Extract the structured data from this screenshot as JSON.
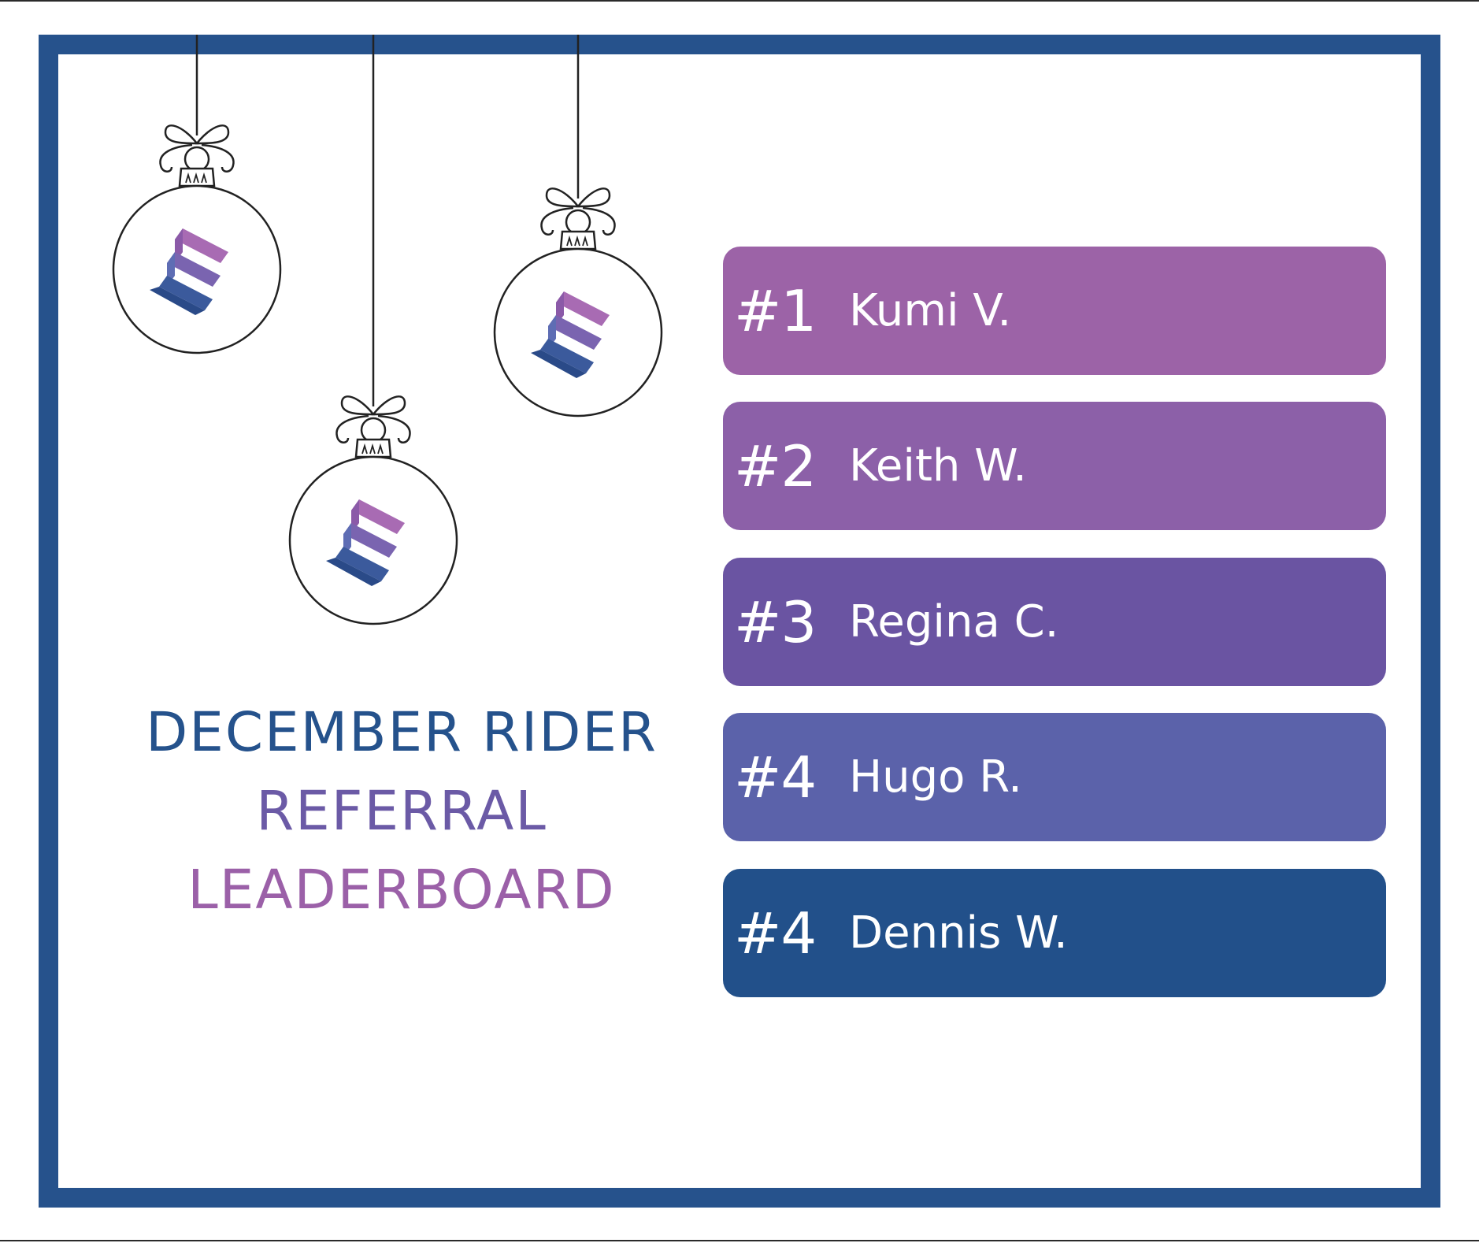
{
  "title": {
    "line1": "DECEMBER RIDER",
    "line2": "REFERRAL",
    "line3": "LEADERBOARD"
  },
  "leaderboard": [
    {
      "rank": "#1",
      "name": "Kumi V.",
      "color": "#9c63a7"
    },
    {
      "rank": "#2",
      "name": "Keith W.",
      "color": "#8c60a8"
    },
    {
      "rank": "#3",
      "name": "Regina C.",
      "color": "#6a54a2"
    },
    {
      "rank": "#4",
      "name": "Hugo R.",
      "color": "#5b62aa"
    },
    {
      "rank": "#4",
      "name": "Dennis W.",
      "color": "#22508a"
    }
  ],
  "colors": {
    "frame": "#26528c",
    "title_line1": "#25528c",
    "title_line2": "#6b5aa6",
    "title_line3": "#9b60a8"
  },
  "icons": [
    "ornament-icon",
    "stairs-logo-icon"
  ]
}
